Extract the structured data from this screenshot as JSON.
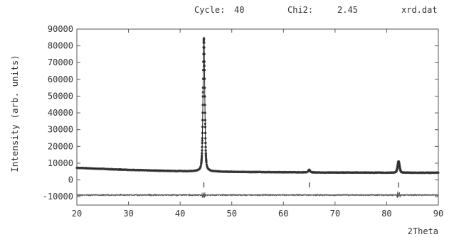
{
  "header": {
    "cycle_label": "Cycle:",
    "cycle_value": "40",
    "chi2_label": "Chi2:",
    "chi2_value": "2.45",
    "filename": "xrd.dat"
  },
  "chart_data": {
    "type": "line",
    "title": "",
    "xlabel": "2Theta",
    "ylabel": "Intensity (arb. units)",
    "xlim": [
      20,
      90
    ],
    "ylim": [
      -15000,
      90000
    ],
    "x_ticks": [
      20,
      30,
      40,
      50,
      60,
      70,
      80,
      90
    ],
    "y_ticks": [
      -10000,
      0,
      10000,
      20000,
      30000,
      40000,
      50000,
      60000,
      70000,
      80000,
      90000
    ],
    "grid": false,
    "colors": {
      "observed": "#444444",
      "calculated": "#222222",
      "difference": "#555555",
      "bragg": "#333333"
    },
    "background": {
      "x": [
        20,
        25,
        30,
        35,
        40,
        45,
        50,
        55,
        60,
        65,
        70,
        75,
        80,
        85,
        90
      ],
      "y": [
        7200,
        6600,
        6000,
        5600,
        5200,
        5000,
        4800,
        4700,
        4600,
        4500,
        4400,
        4400,
        4300,
        4300,
        4300
      ]
    },
    "peaks": [
      {
        "position": 44.6,
        "intensity": 84500,
        "width": 0.4
      },
      {
        "position": 65.0,
        "intensity": 6100,
        "width": 0.4
      },
      {
        "position": 82.3,
        "intensity": 11000,
        "width": 0.45
      },
      {
        "position": 40.0,
        "intensity": 5400,
        "width": 0.25
      },
      {
        "position": 47.0,
        "intensity": 5000,
        "width": 0.5
      }
    ],
    "bragg_positions": [
      44.6,
      65.0,
      82.3
    ],
    "difference_offset": -9000
  }
}
